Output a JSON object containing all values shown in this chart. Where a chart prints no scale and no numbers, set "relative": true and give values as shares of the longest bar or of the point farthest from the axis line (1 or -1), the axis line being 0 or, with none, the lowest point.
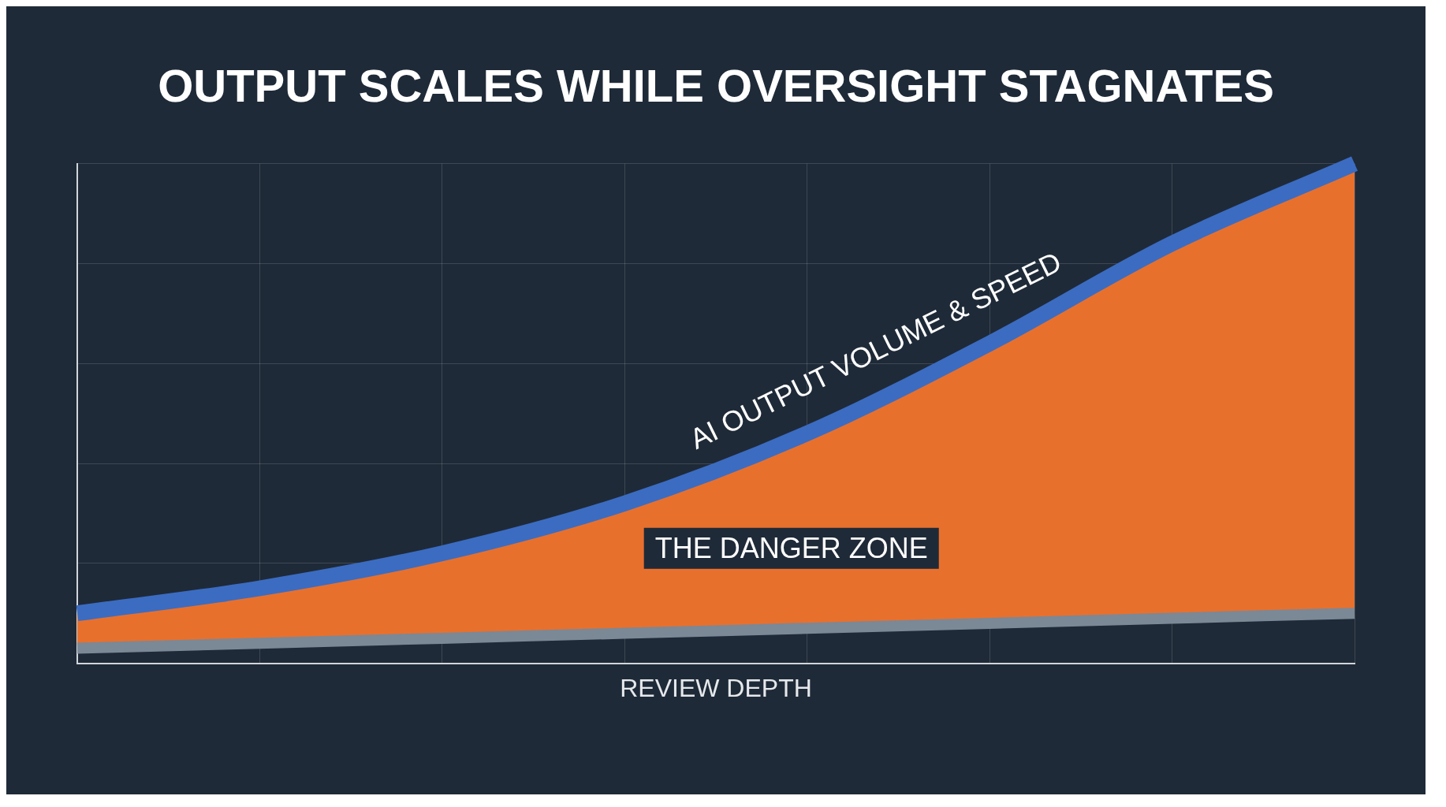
{
  "chart_data": {
    "type": "line",
    "title": "OUTPUT SCALES WHILE OVERSIGHT STAGNATES",
    "xlabel": "REVIEW DEPTH",
    "relative": true,
    "grid": true,
    "legend": false,
    "marker": "none",
    "line_style": "solid",
    "categories": [
      null,
      null,
      null,
      null,
      null,
      null,
      null,
      null
    ],
    "series": [
      {
        "type": "line",
        "color": "#7b8896",
        "values": [
          0.03,
          0.04,
          0.05,
          0.06,
          0.07,
          0.08,
          0.09,
          0.1
        ]
      },
      {
        "type": "area",
        "color": "#e8702d",
        "values": [
          0.1,
          0.15,
          0.22,
          0.32,
          0.46,
          0.64,
          0.84,
          1
        ]
      },
      {
        "type": "line",
        "name": "AI OUTPUT VOLUME & SPEED",
        "color": "#3b6cc2",
        "values": [
          0.1,
          0.15,
          0.22,
          0.32,
          0.46,
          0.64,
          0.84,
          1
        ]
      }
    ],
    "annotations": [
      "THE DANGER ZONE"
    ]
  }
}
